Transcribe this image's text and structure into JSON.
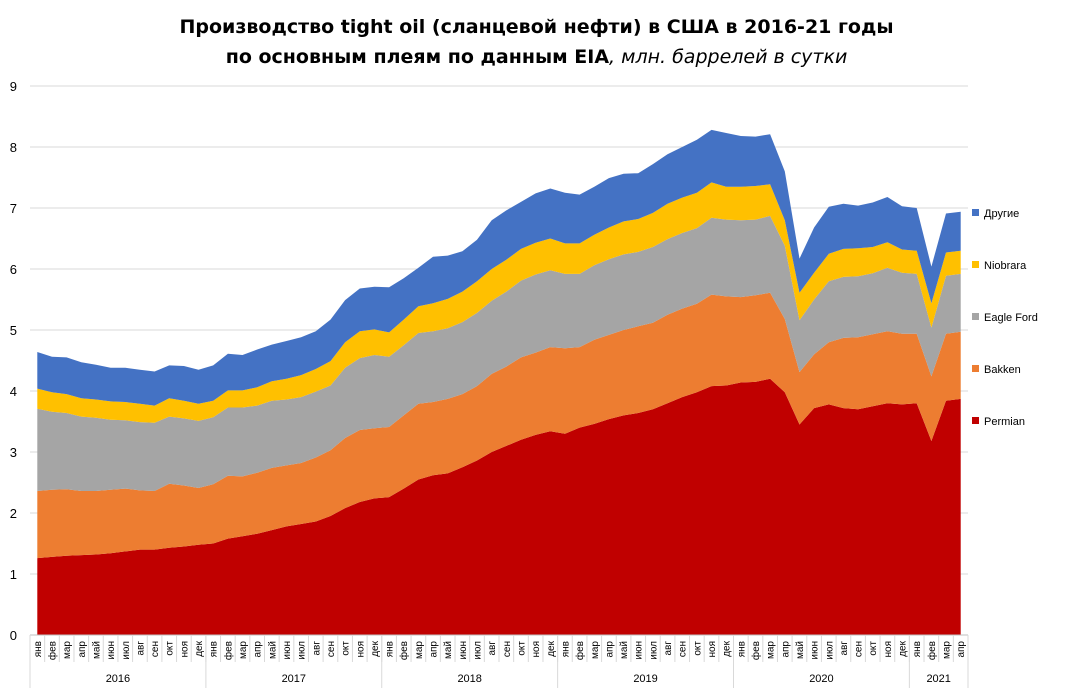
{
  "chart_data": {
    "type": "area",
    "stacked": true,
    "title_line1": "Производство tight oil (сланцевой нефти) в США в 2016-21 годы",
    "title_line2_bold": "по основным плеям по данным EIA",
    "title_line2_italic": ", млн. баррелей в сутки",
    "ylim": [
      0,
      9
    ],
    "yticks": [
      "0",
      "1",
      "2",
      "3",
      "4",
      "5",
      "6",
      "7",
      "8",
      "9"
    ],
    "grid": true,
    "legend_position": "right",
    "months": [
      "янв",
      "фев",
      "мар",
      "апр",
      "май",
      "июн",
      "июл",
      "авг",
      "сен",
      "окт",
      "ноя",
      "дек",
      "янв",
      "фев",
      "мар",
      "апр",
      "май",
      "июн",
      "июл",
      "авг",
      "сен",
      "окт",
      "ноя",
      "дек",
      "янв",
      "фев",
      "мар",
      "апр",
      "май",
      "июн",
      "июл",
      "авг",
      "сен",
      "окт",
      "ноя",
      "дек",
      "янв",
      "фев",
      "мар",
      "апр",
      "май",
      "июн",
      "июл",
      "авг",
      "сен",
      "окт",
      "ноя",
      "дек",
      "янв",
      "фев",
      "мар",
      "апр",
      "май",
      "июн",
      "июл",
      "авг",
      "сен",
      "окт",
      "ноя",
      "дек",
      "янв",
      "фев",
      "мар",
      "апр"
    ],
    "years": [
      {
        "label": "2016",
        "months": 12
      },
      {
        "label": "2017",
        "months": 12
      },
      {
        "label": "2018",
        "months": 12
      },
      {
        "label": "2019",
        "months": 12
      },
      {
        "label": "2020",
        "months": 12
      },
      {
        "label": "2021",
        "months": 4
      }
    ],
    "series": [
      {
        "name": "Permian",
        "color": "#c00000",
        "values": [
          1.26,
          1.28,
          1.3,
          1.31,
          1.32,
          1.34,
          1.37,
          1.4,
          1.4,
          1.43,
          1.45,
          1.48,
          1.5,
          1.58,
          1.62,
          1.66,
          1.72,
          1.78,
          1.82,
          1.86,
          1.95,
          2.08,
          2.18,
          2.24,
          2.26,
          2.4,
          2.55,
          2.62,
          2.65,
          2.75,
          2.86,
          3.0,
          3.1,
          3.2,
          3.28,
          3.34,
          3.3,
          3.4,
          3.46,
          3.54,
          3.6,
          3.64,
          3.7,
          3.8,
          3.9,
          3.98,
          4.08,
          4.09,
          4.14,
          4.15,
          4.2,
          3.98,
          3.45,
          3.72,
          3.78,
          3.72,
          3.7,
          3.75,
          3.8,
          3.78,
          3.8,
          3.18,
          3.84,
          3.87
        ]
      },
      {
        "name": "Bakken",
        "color": "#ed7d31",
        "values": [
          1.1,
          1.1,
          1.09,
          1.05,
          1.04,
          1.04,
          1.03,
          0.97,
          0.96,
          1.05,
          1.0,
          0.93,
          0.97,
          1.03,
          0.98,
          1.0,
          1.02,
          1.0,
          1.0,
          1.05,
          1.08,
          1.15,
          1.18,
          1.15,
          1.15,
          1.2,
          1.24,
          1.2,
          1.22,
          1.2,
          1.22,
          1.28,
          1.3,
          1.35,
          1.35,
          1.38,
          1.4,
          1.32,
          1.38,
          1.38,
          1.4,
          1.42,
          1.42,
          1.45,
          1.45,
          1.45,
          1.5,
          1.46,
          1.4,
          1.42,
          1.41,
          1.2,
          0.86,
          0.88,
          1.02,
          1.15,
          1.18,
          1.18,
          1.18,
          1.16,
          1.14,
          1.06,
          1.1,
          1.1
        ]
      },
      {
        "name": "Eagle Ford",
        "color": "#a5a5a5",
        "values": [
          1.35,
          1.28,
          1.25,
          1.22,
          1.2,
          1.15,
          1.12,
          1.12,
          1.12,
          1.1,
          1.1,
          1.1,
          1.1,
          1.12,
          1.13,
          1.1,
          1.1,
          1.08,
          1.08,
          1.08,
          1.06,
          1.15,
          1.18,
          1.2,
          1.15,
          1.15,
          1.16,
          1.16,
          1.16,
          1.18,
          1.2,
          1.2,
          1.23,
          1.26,
          1.28,
          1.26,
          1.22,
          1.2,
          1.22,
          1.24,
          1.24,
          1.22,
          1.24,
          1.24,
          1.24,
          1.24,
          1.26,
          1.26,
          1.26,
          1.24,
          1.26,
          1.2,
          0.85,
          0.9,
          1.0,
          1.0,
          1.0,
          1.0,
          1.04,
          1.0,
          0.98,
          0.8,
          0.95,
          0.95
        ]
      },
      {
        "name": "Niobrara",
        "color": "#ffc000",
        "values": [
          0.33,
          0.32,
          0.31,
          0.3,
          0.3,
          0.3,
          0.3,
          0.3,
          0.28,
          0.3,
          0.29,
          0.28,
          0.27,
          0.28,
          0.28,
          0.3,
          0.32,
          0.34,
          0.36,
          0.37,
          0.4,
          0.42,
          0.44,
          0.42,
          0.4,
          0.42,
          0.44,
          0.46,
          0.48,
          0.5,
          0.52,
          0.52,
          0.52,
          0.52,
          0.52,
          0.52,
          0.5,
          0.5,
          0.5,
          0.52,
          0.54,
          0.54,
          0.56,
          0.58,
          0.58,
          0.58,
          0.58,
          0.54,
          0.55,
          0.55,
          0.52,
          0.42,
          0.45,
          0.44,
          0.45,
          0.46,
          0.46,
          0.43,
          0.42,
          0.38,
          0.38,
          0.4,
          0.38,
          0.38
        ]
      },
      {
        "name": "Другие",
        "color": "#4472c4",
        "values": [
          0.6,
          0.58,
          0.6,
          0.59,
          0.57,
          0.55,
          0.56,
          0.56,
          0.56,
          0.54,
          0.57,
          0.56,
          0.58,
          0.6,
          0.58,
          0.62,
          0.6,
          0.62,
          0.62,
          0.62,
          0.68,
          0.69,
          0.7,
          0.7,
          0.74,
          0.68,
          0.63,
          0.76,
          0.71,
          0.66,
          0.68,
          0.8,
          0.81,
          0.77,
          0.81,
          0.82,
          0.83,
          0.8,
          0.79,
          0.81,
          0.78,
          0.75,
          0.8,
          0.81,
          0.83,
          0.87,
          0.86,
          0.88,
          0.83,
          0.81,
          0.82,
          0.8,
          0.56,
          0.74,
          0.77,
          0.74,
          0.7,
          0.73,
          0.74,
          0.71,
          0.7,
          0.6,
          0.64,
          0.64
        ]
      }
    ]
  }
}
